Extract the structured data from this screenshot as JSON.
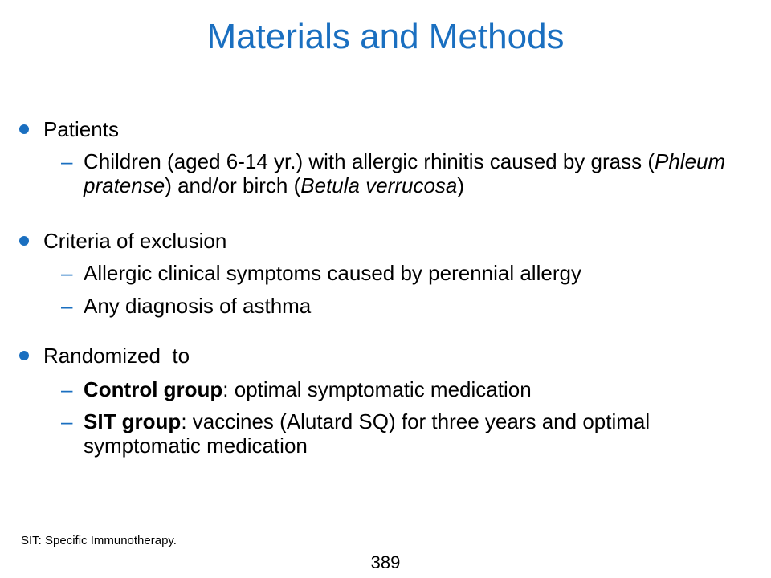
{
  "title": "Materials and Methods",
  "sections": [
    {
      "heading": "Patients",
      "items": [
        {
          "parts": [
            {
              "text": "Children (aged 6-14 yr.) with allergic rhinitis caused by grass (",
              "style": "normal"
            },
            {
              "text": "Phleum pratense",
              "style": "italic"
            },
            {
              "text": ") and/or birch (",
              "style": "normal"
            },
            {
              "text": "Betula verrucosa",
              "style": "italic"
            },
            {
              "text": ")",
              "style": "normal"
            }
          ]
        }
      ]
    },
    {
      "heading": "Criteria of exclusion",
      "items": [
        {
          "parts": [
            {
              "text": "Allergic clinical symptoms caused by perennial allergy",
              "style": "normal"
            }
          ]
        },
        {
          "parts": [
            {
              "text": "Any diagnosis of asthma",
              "style": "normal"
            }
          ]
        }
      ]
    },
    {
      "heading": "Randomized  to",
      "items": [
        {
          "parts": [
            {
              "text": "Control group",
              "style": "bold"
            },
            {
              "text": ": optimal symptomatic medication",
              "style": "normal"
            }
          ]
        },
        {
          "parts": [
            {
              "text": "SIT group",
              "style": "bold"
            },
            {
              "text": ": vaccines (Alutard SQ) for three years and optimal symptomatic medication",
              "style": "normal"
            }
          ]
        }
      ]
    }
  ],
  "dash_symbol": "–",
  "footnote": "SIT: Specific Immunotherapy.",
  "page_number": "389",
  "colors": {
    "accent": "#1a6fc0",
    "text": "#000000"
  }
}
